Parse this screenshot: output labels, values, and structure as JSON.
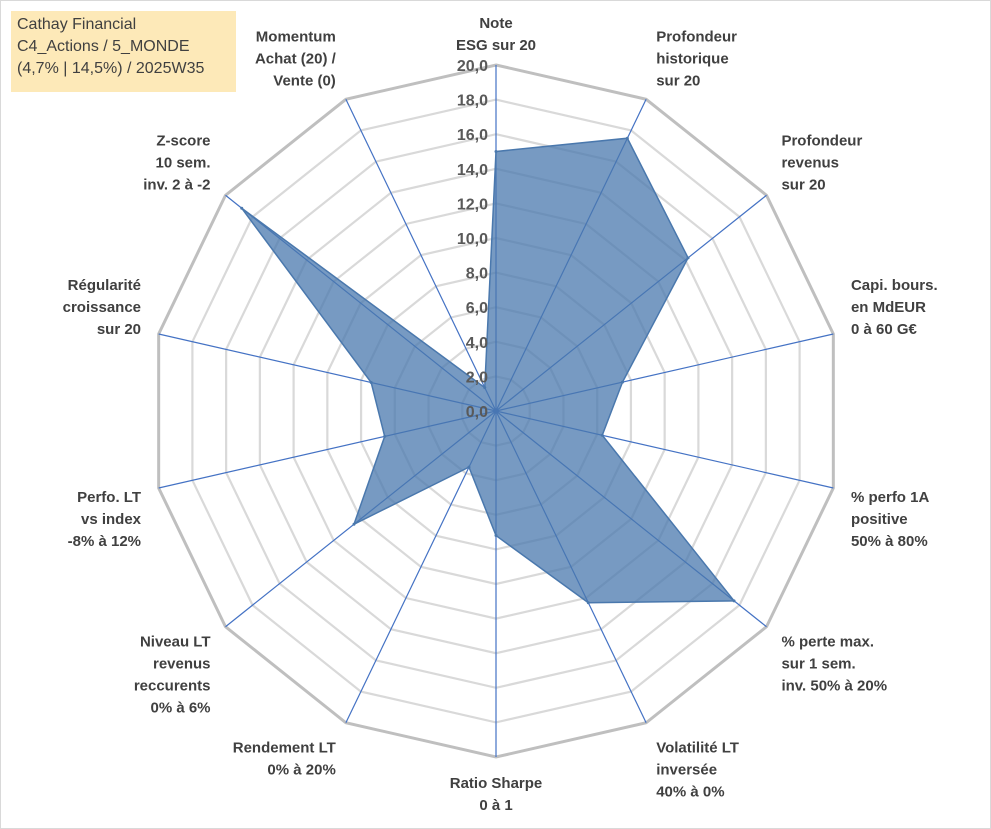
{
  "title_lines": [
    "Cathay Financial",
    "C4_Actions / 5_MONDE",
    "(4,7% | 14,5%) / 2025W35"
  ],
  "chart_data": {
    "type": "radar",
    "title": "Cathay Financial C4_Actions / 5_MONDE (4,7% | 14,5%) / 2025W35",
    "rmin": 0,
    "rmax": 20,
    "tick_step": 2,
    "tick_labels": [
      "0,0",
      "2,0",
      "4,0",
      "6,0",
      "8,0",
      "10,0",
      "12,0",
      "14,0",
      "16,0",
      "18,0",
      "20,0"
    ],
    "grid": true,
    "legend": "none",
    "categories": [
      [
        "Note",
        "ESG sur 20"
      ],
      [
        "Profondeur",
        "historique",
        "sur 20"
      ],
      [
        "Profondeur",
        "revenus",
        "sur 20"
      ],
      [
        "Capi. bours.",
        "en MdEUR",
        "0 à 60 G€"
      ],
      [
        "% perfo 1A",
        "positive",
        "50% à 80%"
      ],
      [
        "% perte max.",
        "sur 1 sem.",
        "inv. 50% à 20%"
      ],
      [
        "Volatilité LT",
        "inversée",
        "40% à 0%"
      ],
      [
        "Ratio Sharpe",
        "0 à 1"
      ],
      [
        "Rendement LT",
        "0% à 20%"
      ],
      [
        "Niveau LT",
        "revenus",
        "reccurents",
        "0% à 6%"
      ],
      [
        "Perfo. LT",
        "vs index",
        "-8% à 12%"
      ],
      [
        "Régularité",
        "croissance",
        "sur 20"
      ],
      [
        "Z-score",
        "10 sem.",
        "inv. 2 à -2"
      ],
      [
        "Momentum",
        "Achat (20) /",
        "Vente (0)"
      ]
    ],
    "series": [
      {
        "values": [
          15,
          17.5,
          14.2,
          7.5,
          6.3,
          17.6,
          12.3,
          7.2,
          3.6,
          10.5,
          6.6,
          7.4,
          18.8,
          1.5
        ],
        "color": "#4a78ad"
      }
    ]
  }
}
